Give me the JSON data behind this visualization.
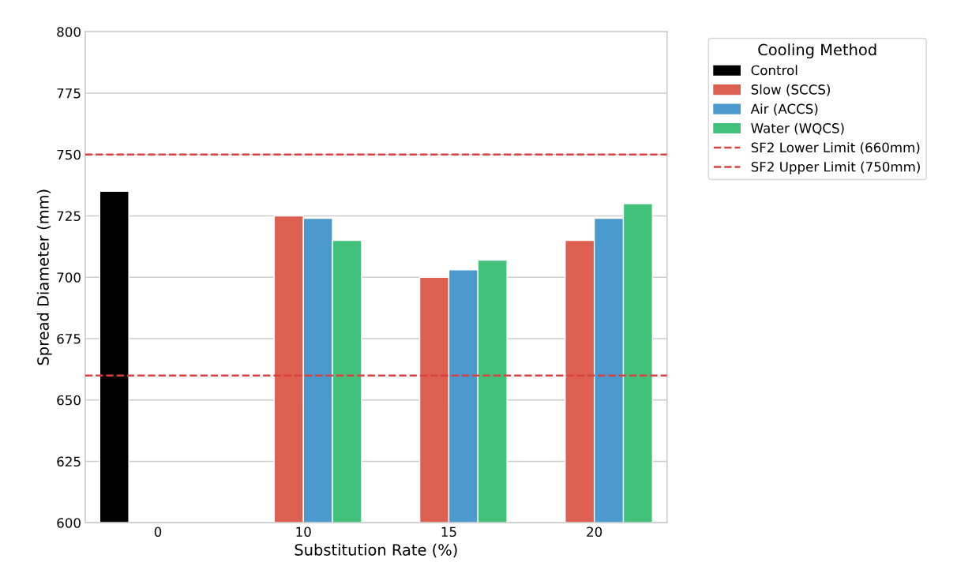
{
  "chart_data": {
    "type": "bar",
    "xlabel": "Substitution Rate (%)",
    "ylabel": "Spread Diameter (mm)",
    "legend_title": "Cooling Method",
    "categories": [
      "0",
      "10",
      "15",
      "20"
    ],
    "series": [
      {
        "name": "Control",
        "color": "#000000",
        "values": [
          735,
          null,
          null,
          null
        ]
      },
      {
        "name": "Slow (SCCS)",
        "color": "#dc5f50",
        "values": [
          null,
          725,
          700,
          715
        ]
      },
      {
        "name": "Air (ACCS)",
        "color": "#4a9ad0",
        "values": [
          null,
          724,
          703,
          724
        ]
      },
      {
        "name": "Water (WQCS)",
        "color": "#42c17a",
        "values": [
          null,
          715,
          707,
          730
        ]
      }
    ],
    "ylim": [
      600,
      800
    ],
    "yticks": [
      600,
      625,
      650,
      675,
      700,
      725,
      750,
      775,
      800
    ],
    "ref_lines": [
      {
        "axis": "y",
        "value": 660,
        "label": "SF2 Lower Limit (660mm)",
        "color": "#d9413f",
        "line_style": "dashed"
      },
      {
        "axis": "y",
        "value": 750,
        "label": "SF2 Upper Limit (750mm)",
        "color": "#d9413f",
        "line_style": "dashed"
      }
    ],
    "grid": "y",
    "legend": "top right"
  }
}
